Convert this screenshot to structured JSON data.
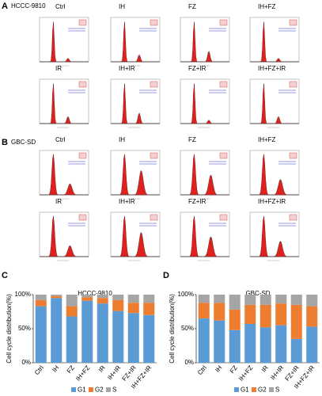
{
  "panels": [
    {
      "label": "A",
      "cell_line": "HCCC-9810",
      "conditions": [
        "Ctrl",
        "IH",
        "FZ",
        "IH+FZ",
        "IR",
        "IH+IR",
        "FZ+IR",
        "IH+FZ+IR"
      ]
    },
    {
      "label": "B",
      "cell_line": "GBC-SD",
      "conditions": [
        "Ctrl",
        "IH",
        "FZ",
        "IH+FZ",
        "IR",
        "IH+IR",
        "FZ+IR",
        "IH+FZ+IR"
      ]
    },
    {
      "label": "C"
    },
    {
      "label": "D"
    }
  ],
  "chart_data": [
    {
      "type": "stacked_bar",
      "title": "HCCC-9810",
      "y_label": "Cell cycle distribution(%)",
      "categories": [
        "Ctrl",
        "IH",
        "FZ",
        "IH+FZ",
        "IR",
        "IH+IR",
        "FZ+IR",
        "IH+FZ+IR"
      ],
      "series": [
        {
          "name": "G1",
          "color": "#5b9bd5",
          "values": [
            83,
            95,
            68,
            91,
            87,
            76,
            73,
            70
          ]
        },
        {
          "name": "G2",
          "color": "#ed7d31",
          "values": [
            9,
            3,
            15,
            5,
            8,
            16,
            15,
            18
          ]
        },
        {
          "name": "S",
          "color": "#a5a5a5",
          "values": [
            8,
            2,
            17,
            4,
            5,
            8,
            12,
            12
          ]
        }
      ],
      "ylim": [
        0,
        100
      ],
      "yticks": [
        {
          "value": 0,
          "label": "0%"
        },
        {
          "value": 50,
          "label": "50%"
        },
        {
          "value": 100,
          "label": "100%"
        }
      ],
      "legend": "bottom"
    },
    {
      "type": "stacked_bar",
      "title": "GBC-SD",
      "y_label": "Cell cycle distribution(%)",
      "categories": [
        "Ctrl",
        "IH",
        "FZ",
        "IH+FZ",
        "IR",
        "IH+IR",
        "FZ+IR",
        "IH+FZ+IR"
      ],
      "series": [
        {
          "name": "G1",
          "color": "#5b9bd5",
          "values": [
            65,
            62,
            48,
            57,
            52,
            55,
            35,
            53
          ]
        },
        {
          "name": "G2",
          "color": "#ed7d31",
          "values": [
            23,
            26,
            30,
            28,
            33,
            32,
            50,
            30
          ]
        },
        {
          "name": "S",
          "color": "#a5a5a5",
          "values": [
            12,
            12,
            22,
            15,
            15,
            13,
            15,
            17
          ]
        }
      ],
      "ylim": [
        0,
        100
      ],
      "yticks": [
        {
          "value": 0,
          "label": "0%"
        },
        {
          "value": 50,
          "label": "50%"
        },
        {
          "value": 100,
          "label": "100%"
        }
      ],
      "legend": "bottom"
    }
  ]
}
